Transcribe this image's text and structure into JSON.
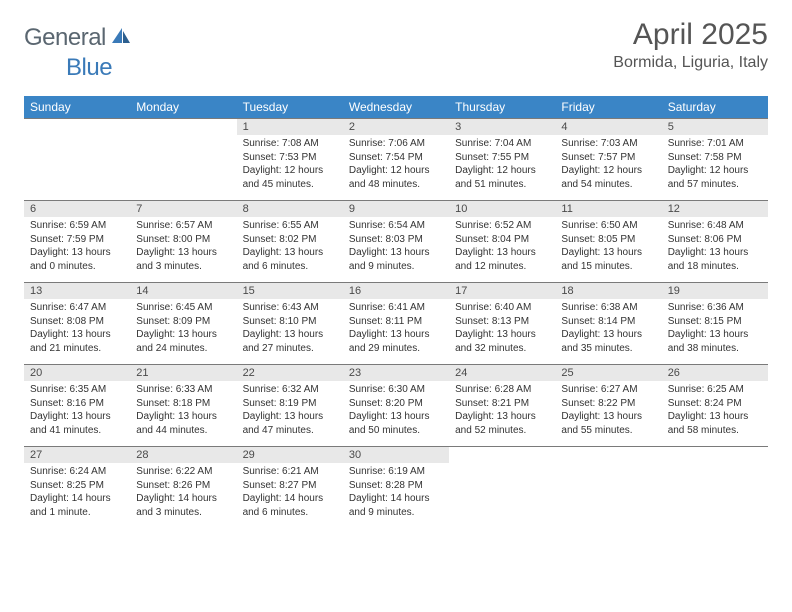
{
  "logo": {
    "general": "General",
    "blue": "Blue"
  },
  "title": "April 2025",
  "location": "Bormida, Liguria, Italy",
  "colors": {
    "header_bg": "#3a85c6",
    "header_fg": "#ffffff",
    "daynum_bg": "#e8e8e8",
    "daynum_fg": "#4a4a4a",
    "border": "#7a7a7a",
    "text": "#333333",
    "logo_gray": "#5a6670",
    "logo_blue": "#3a7ab8"
  },
  "daynames": [
    "Sunday",
    "Monday",
    "Tuesday",
    "Wednesday",
    "Thursday",
    "Friday",
    "Saturday"
  ],
  "weeks": [
    [
      null,
      null,
      {
        "n": "1",
        "sr": "Sunrise: 7:08 AM",
        "ss": "Sunset: 7:53 PM",
        "dl": "Daylight: 12 hours and 45 minutes."
      },
      {
        "n": "2",
        "sr": "Sunrise: 7:06 AM",
        "ss": "Sunset: 7:54 PM",
        "dl": "Daylight: 12 hours and 48 minutes."
      },
      {
        "n": "3",
        "sr": "Sunrise: 7:04 AM",
        "ss": "Sunset: 7:55 PM",
        "dl": "Daylight: 12 hours and 51 minutes."
      },
      {
        "n": "4",
        "sr": "Sunrise: 7:03 AM",
        "ss": "Sunset: 7:57 PM",
        "dl": "Daylight: 12 hours and 54 minutes."
      },
      {
        "n": "5",
        "sr": "Sunrise: 7:01 AM",
        "ss": "Sunset: 7:58 PM",
        "dl": "Daylight: 12 hours and 57 minutes."
      }
    ],
    [
      {
        "n": "6",
        "sr": "Sunrise: 6:59 AM",
        "ss": "Sunset: 7:59 PM",
        "dl": "Daylight: 13 hours and 0 minutes."
      },
      {
        "n": "7",
        "sr": "Sunrise: 6:57 AM",
        "ss": "Sunset: 8:00 PM",
        "dl": "Daylight: 13 hours and 3 minutes."
      },
      {
        "n": "8",
        "sr": "Sunrise: 6:55 AM",
        "ss": "Sunset: 8:02 PM",
        "dl": "Daylight: 13 hours and 6 minutes."
      },
      {
        "n": "9",
        "sr": "Sunrise: 6:54 AM",
        "ss": "Sunset: 8:03 PM",
        "dl": "Daylight: 13 hours and 9 minutes."
      },
      {
        "n": "10",
        "sr": "Sunrise: 6:52 AM",
        "ss": "Sunset: 8:04 PM",
        "dl": "Daylight: 13 hours and 12 minutes."
      },
      {
        "n": "11",
        "sr": "Sunrise: 6:50 AM",
        "ss": "Sunset: 8:05 PM",
        "dl": "Daylight: 13 hours and 15 minutes."
      },
      {
        "n": "12",
        "sr": "Sunrise: 6:48 AM",
        "ss": "Sunset: 8:06 PM",
        "dl": "Daylight: 13 hours and 18 minutes."
      }
    ],
    [
      {
        "n": "13",
        "sr": "Sunrise: 6:47 AM",
        "ss": "Sunset: 8:08 PM",
        "dl": "Daylight: 13 hours and 21 minutes."
      },
      {
        "n": "14",
        "sr": "Sunrise: 6:45 AM",
        "ss": "Sunset: 8:09 PM",
        "dl": "Daylight: 13 hours and 24 minutes."
      },
      {
        "n": "15",
        "sr": "Sunrise: 6:43 AM",
        "ss": "Sunset: 8:10 PM",
        "dl": "Daylight: 13 hours and 27 minutes."
      },
      {
        "n": "16",
        "sr": "Sunrise: 6:41 AM",
        "ss": "Sunset: 8:11 PM",
        "dl": "Daylight: 13 hours and 29 minutes."
      },
      {
        "n": "17",
        "sr": "Sunrise: 6:40 AM",
        "ss": "Sunset: 8:13 PM",
        "dl": "Daylight: 13 hours and 32 minutes."
      },
      {
        "n": "18",
        "sr": "Sunrise: 6:38 AM",
        "ss": "Sunset: 8:14 PM",
        "dl": "Daylight: 13 hours and 35 minutes."
      },
      {
        "n": "19",
        "sr": "Sunrise: 6:36 AM",
        "ss": "Sunset: 8:15 PM",
        "dl": "Daylight: 13 hours and 38 minutes."
      }
    ],
    [
      {
        "n": "20",
        "sr": "Sunrise: 6:35 AM",
        "ss": "Sunset: 8:16 PM",
        "dl": "Daylight: 13 hours and 41 minutes."
      },
      {
        "n": "21",
        "sr": "Sunrise: 6:33 AM",
        "ss": "Sunset: 8:18 PM",
        "dl": "Daylight: 13 hours and 44 minutes."
      },
      {
        "n": "22",
        "sr": "Sunrise: 6:32 AM",
        "ss": "Sunset: 8:19 PM",
        "dl": "Daylight: 13 hours and 47 minutes."
      },
      {
        "n": "23",
        "sr": "Sunrise: 6:30 AM",
        "ss": "Sunset: 8:20 PM",
        "dl": "Daylight: 13 hours and 50 minutes."
      },
      {
        "n": "24",
        "sr": "Sunrise: 6:28 AM",
        "ss": "Sunset: 8:21 PM",
        "dl": "Daylight: 13 hours and 52 minutes."
      },
      {
        "n": "25",
        "sr": "Sunrise: 6:27 AM",
        "ss": "Sunset: 8:22 PM",
        "dl": "Daylight: 13 hours and 55 minutes."
      },
      {
        "n": "26",
        "sr": "Sunrise: 6:25 AM",
        "ss": "Sunset: 8:24 PM",
        "dl": "Daylight: 13 hours and 58 minutes."
      }
    ],
    [
      {
        "n": "27",
        "sr": "Sunrise: 6:24 AM",
        "ss": "Sunset: 8:25 PM",
        "dl": "Daylight: 14 hours and 1 minute."
      },
      {
        "n": "28",
        "sr": "Sunrise: 6:22 AM",
        "ss": "Sunset: 8:26 PM",
        "dl": "Daylight: 14 hours and 3 minutes."
      },
      {
        "n": "29",
        "sr": "Sunrise: 6:21 AM",
        "ss": "Sunset: 8:27 PM",
        "dl": "Daylight: 14 hours and 6 minutes."
      },
      {
        "n": "30",
        "sr": "Sunrise: 6:19 AM",
        "ss": "Sunset: 8:28 PM",
        "dl": "Daylight: 14 hours and 9 minutes."
      },
      null,
      null,
      null
    ]
  ]
}
